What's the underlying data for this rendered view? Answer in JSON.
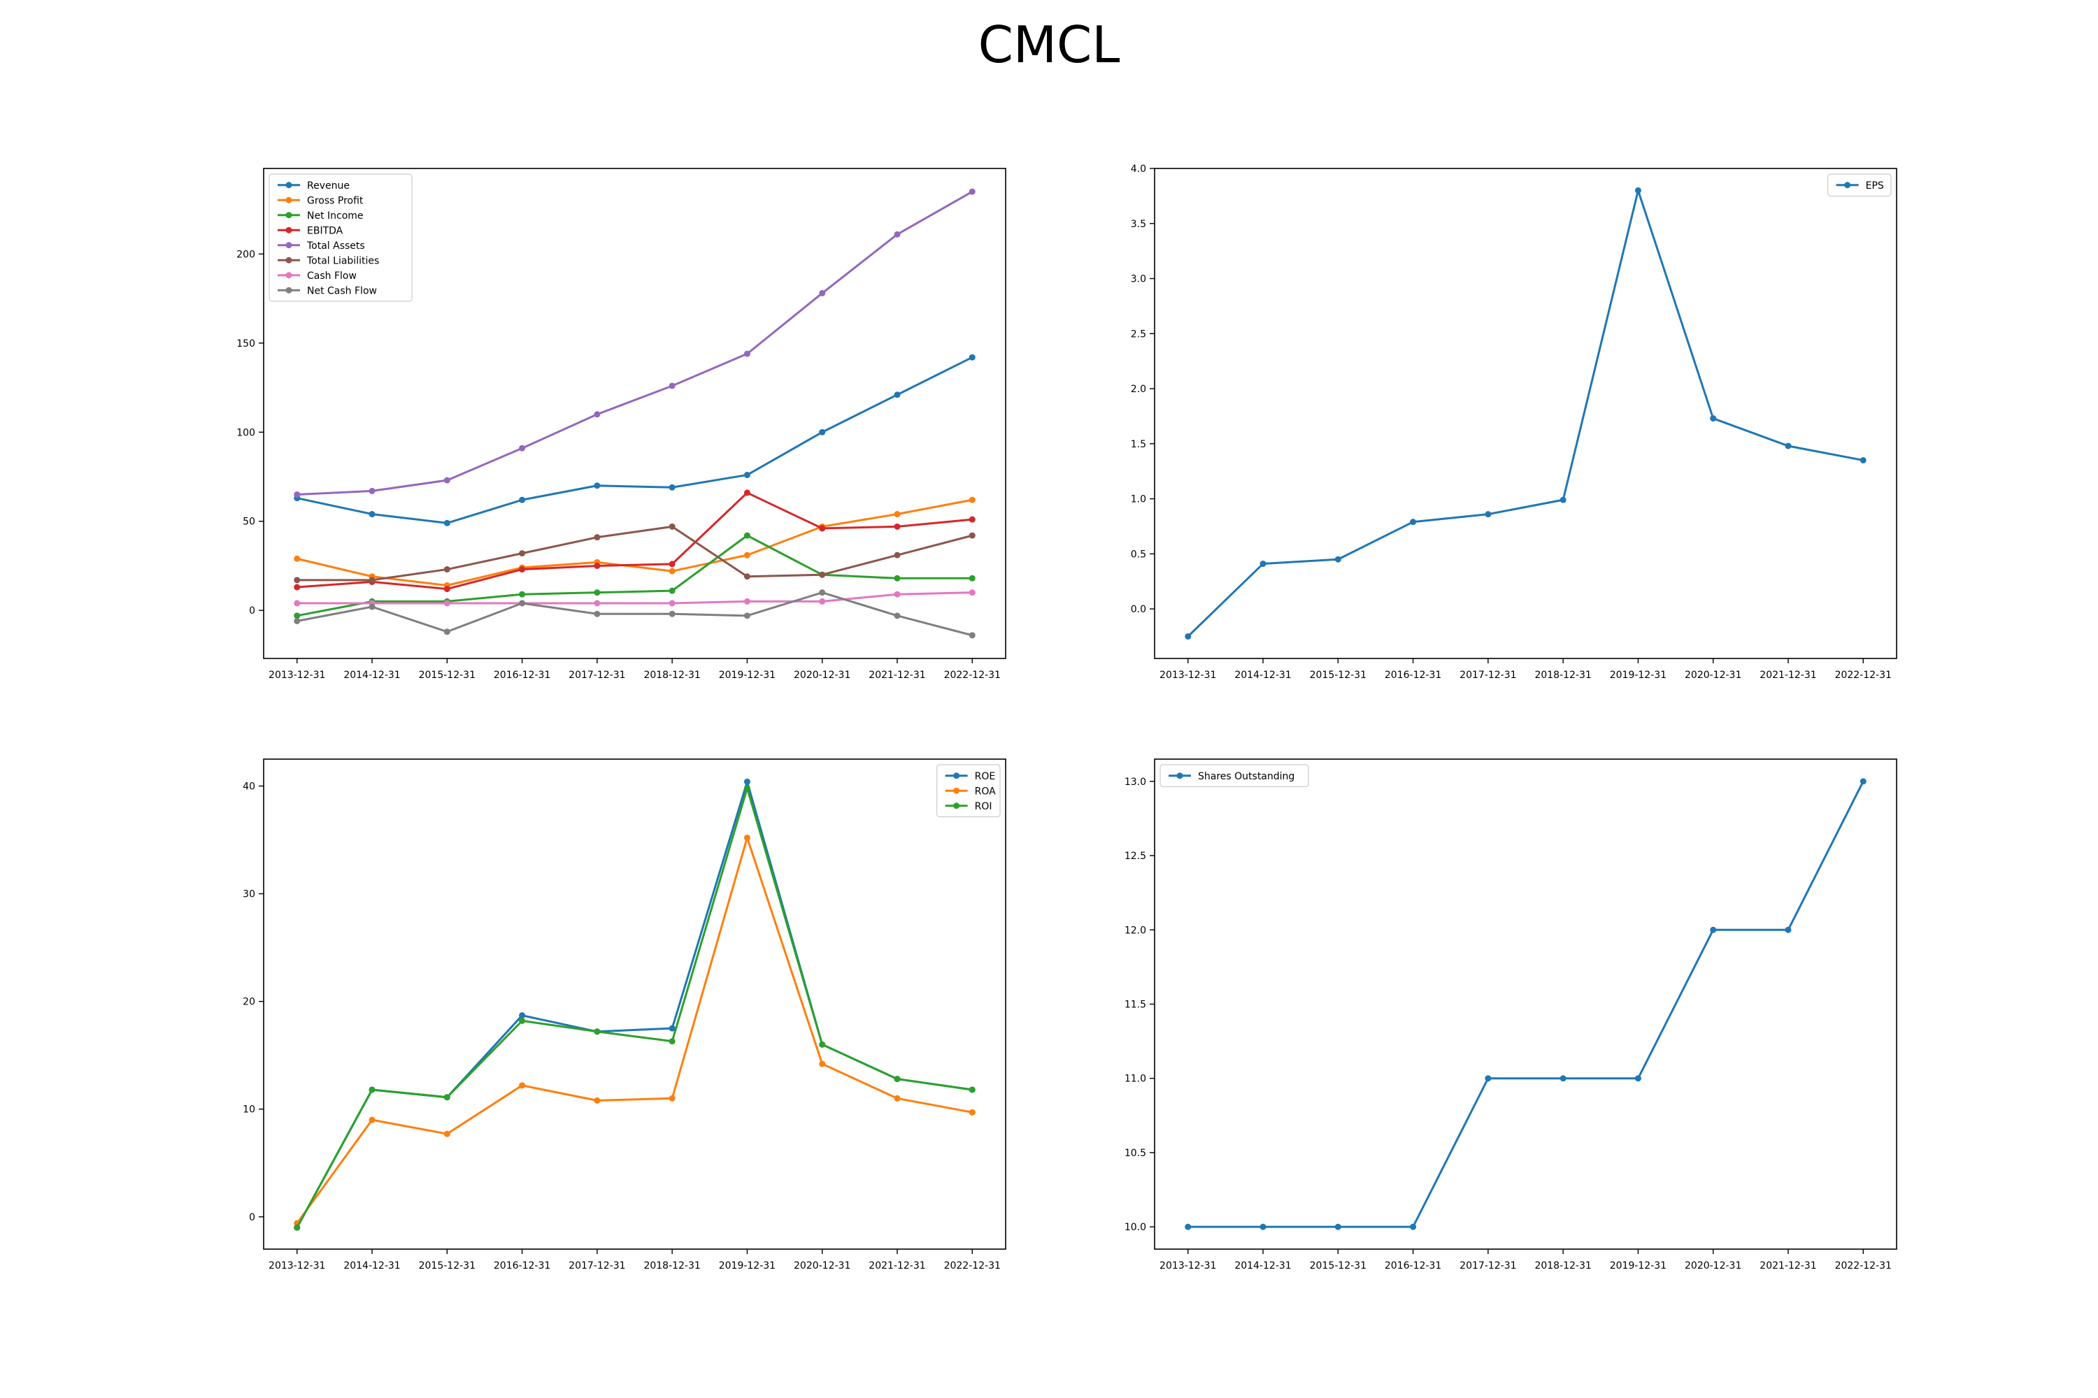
{
  "title": "CMCL",
  "chart_data": [
    {
      "type": "line",
      "x": [
        "2013-12-31",
        "2014-12-31",
        "2015-12-31",
        "2016-12-31",
        "2017-12-31",
        "2018-12-31",
        "2019-12-31",
        "2020-12-31",
        "2021-12-31",
        "2022-12-31"
      ],
      "series": [
        {
          "name": "Revenue",
          "color": "#1f77b4",
          "values": [
            63,
            54,
            49,
            62,
            70,
            69,
            76,
            100,
            121,
            142
          ]
        },
        {
          "name": "Gross Profit",
          "color": "#ff7f0e",
          "values": [
            29,
            19,
            14,
            24,
            27,
            22,
            31,
            47,
            54,
            62
          ]
        },
        {
          "name": "Net Income",
          "color": "#2ca02c",
          "values": [
            -3,
            5,
            5,
            9,
            10,
            11,
            42,
            20,
            18,
            18
          ]
        },
        {
          "name": "EBITDA",
          "color": "#d62728",
          "values": [
            13,
            16,
            12,
            23,
            25,
            26,
            66,
            46,
            47,
            51
          ]
        },
        {
          "name": "Total Assets",
          "color": "#9467bd",
          "values": [
            65,
            67,
            73,
            91,
            110,
            126,
            144,
            178,
            211,
            235
          ]
        },
        {
          "name": "Total Liabilities",
          "color": "#8c564b",
          "values": [
            17,
            17,
            23,
            32,
            41,
            47,
            19,
            20,
            31,
            42
          ]
        },
        {
          "name": "Cash Flow",
          "color": "#e377c2",
          "values": [
            4,
            4,
            4,
            4,
            4,
            4,
            5,
            5,
            9,
            10
          ]
        },
        {
          "name": "Net Cash Flow",
          "color": "#7f7f7f",
          "values": [
            -6,
            2,
            -12,
            4,
            -2,
            -2,
            -3,
            10,
            -3,
            -14
          ]
        }
      ],
      "yticks": [
        0,
        50,
        100,
        150,
        200
      ],
      "ylim": [
        -27,
        248
      ],
      "legend": "top-left"
    },
    {
      "type": "line",
      "x": [
        "2013-12-31",
        "2014-12-31",
        "2015-12-31",
        "2016-12-31",
        "2017-12-31",
        "2018-12-31",
        "2019-12-31",
        "2020-12-31",
        "2021-12-31",
        "2022-12-31"
      ],
      "series": [
        {
          "name": "EPS",
          "color": "#1f77b4",
          "values": [
            -0.25,
            0.41,
            0.45,
            0.79,
            0.86,
            0.99,
            3.8,
            1.73,
            1.48,
            1.35
          ]
        }
      ],
      "yticks": [
        0.0,
        0.5,
        1.0,
        1.5,
        2.0,
        2.5,
        3.0,
        3.5,
        4.0
      ],
      "ytick_labels": [
        "0.0",
        "0.5",
        "1.0",
        "1.5",
        "2.0",
        "2.5",
        "3.0",
        "3.5",
        "4.0"
      ],
      "ylim": [
        -0.45,
        4.0
      ],
      "legend": "top-right"
    },
    {
      "type": "line",
      "x": [
        "2013-12-31",
        "2014-12-31",
        "2015-12-31",
        "2016-12-31",
        "2017-12-31",
        "2018-12-31",
        "2019-12-31",
        "2020-12-31",
        "2021-12-31",
        "2022-12-31"
      ],
      "series": [
        {
          "name": "ROE",
          "color": "#1f77b4",
          "values": [
            -1,
            11.8,
            11.1,
            18.7,
            17.2,
            17.5,
            40.4,
            16.0,
            12.8,
            11.8
          ]
        },
        {
          "name": "ROA",
          "color": "#ff7f0e",
          "values": [
            -0.6,
            9.0,
            7.7,
            12.2,
            10.8,
            11.0,
            35.2,
            14.2,
            11.0,
            9.7
          ]
        },
        {
          "name": "ROI",
          "color": "#2ca02c",
          "values": [
            -1,
            11.8,
            11.1,
            18.2,
            17.2,
            16.3,
            39.8,
            16.0,
            12.8,
            11.8
          ]
        }
      ],
      "yticks": [
        0,
        10,
        20,
        30,
        40
      ],
      "ylim": [
        -3,
        42.5
      ],
      "legend": "top-right"
    },
    {
      "type": "line",
      "x": [
        "2013-12-31",
        "2014-12-31",
        "2015-12-31",
        "2016-12-31",
        "2017-12-31",
        "2018-12-31",
        "2019-12-31",
        "2020-12-31",
        "2021-12-31",
        "2022-12-31"
      ],
      "series": [
        {
          "name": "Shares Outstanding",
          "color": "#1f77b4",
          "values": [
            10,
            10,
            10,
            10,
            11,
            11,
            11,
            12,
            12,
            13
          ]
        }
      ],
      "yticks": [
        10.0,
        10.5,
        11.0,
        11.5,
        12.0,
        12.5,
        13.0
      ],
      "ytick_labels": [
        "10.0",
        "10.5",
        "11.0",
        "11.5",
        "12.0",
        "12.5",
        "13.0"
      ],
      "ylim": [
        9.85,
        13.15
      ],
      "legend": "top-left"
    }
  ]
}
